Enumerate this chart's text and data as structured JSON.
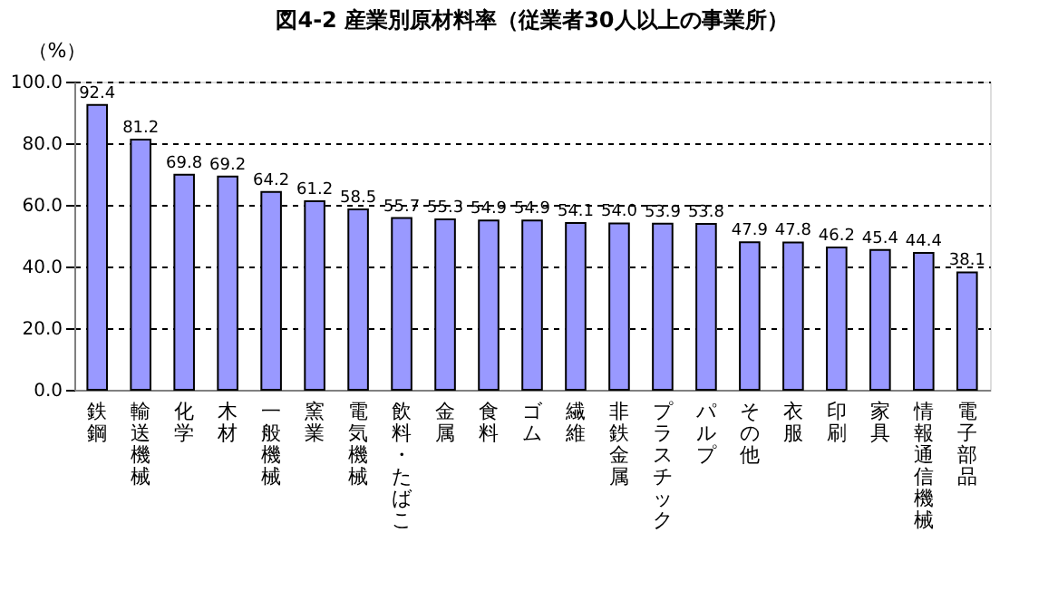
{
  "chart_data": {
    "type": "bar",
    "title": "図4-2 産業別原材料率（従業者30人以上の事業所）",
    "ylabel": "（%）",
    "categories": [
      "鉄鋼",
      "輸送機械",
      "化学",
      "木材",
      "一般機械",
      "窯業",
      "電気機械",
      "飲料・たばこ",
      "金属",
      "食料",
      "ゴム",
      "繊維",
      "非鉄金属",
      "プラスチック",
      "パルプ",
      "その他",
      "衣服",
      "印刷",
      "家具",
      "情報通信機械",
      "電子部品"
    ],
    "values": [
      92.4,
      81.2,
      69.8,
      69.2,
      64.2,
      61.2,
      58.5,
      55.7,
      55.3,
      54.9,
      54.9,
      54.1,
      54.0,
      53.9,
      53.8,
      47.9,
      47.8,
      46.2,
      45.4,
      44.4,
      38.1
    ],
    "value_labels": [
      "92.4",
      "81.2",
      "69.8",
      "69.2",
      "64.2",
      "61.2",
      "58.5",
      "55.7",
      "55.3",
      "54.9",
      "54.9",
      "54.1",
      "54.0",
      "53.9",
      "53.8",
      "47.9",
      "47.8",
      "46.2",
      "45.4",
      "44.4",
      "38.1"
    ],
    "color": "#9999ff",
    "ylim": [
      0,
      100
    ],
    "yticks": [
      {
        "value": 0,
        "label": "0.0"
      },
      {
        "value": 20,
        "label": "20.0"
      },
      {
        "value": 40,
        "label": "40.0"
      },
      {
        "value": 60,
        "label": "60.0"
      },
      {
        "value": 80,
        "label": "80.0"
      },
      {
        "value": 100,
        "label": "100.0"
      }
    ],
    "grid": "y"
  }
}
